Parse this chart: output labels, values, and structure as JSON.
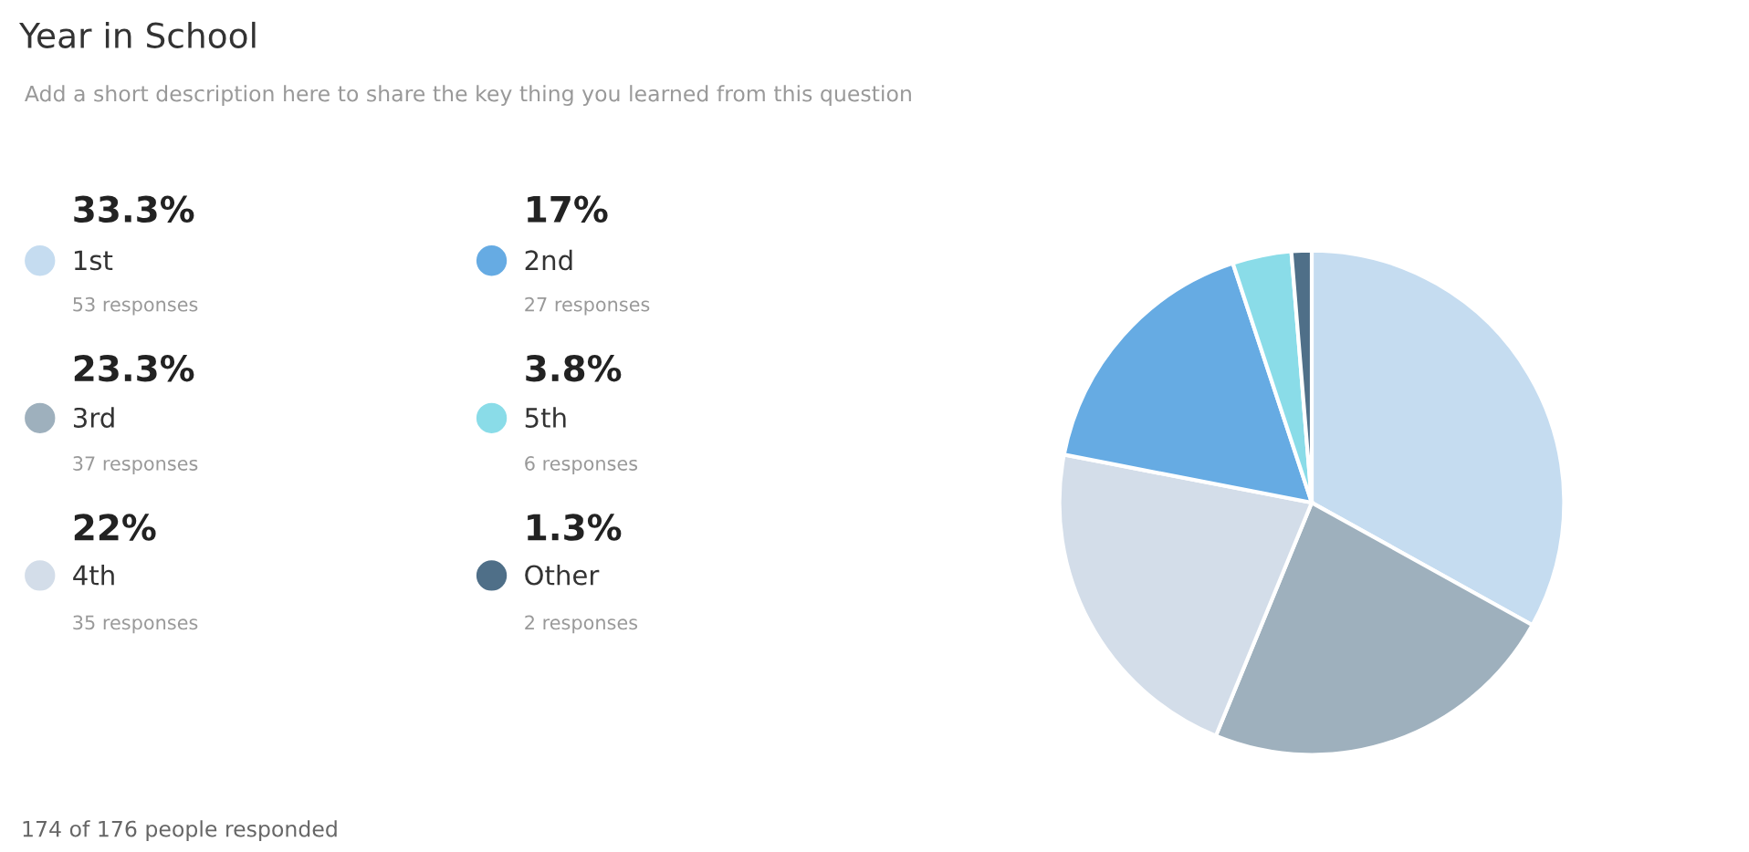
{
  "chart_data": {
    "type": "pie",
    "title": "Year in School",
    "subtitle": "Add a short description here to share the key thing you learned from this question",
    "categories": [
      "1st",
      "3rd",
      "4th",
      "2nd",
      "5th",
      "Other"
    ],
    "values": [
      33.3,
      23.3,
      22,
      17,
      3.8,
      1.3
    ],
    "value_labels": [
      "33.3%",
      "23.3%",
      "22%",
      "17%",
      "3.8%",
      "1.3%"
    ],
    "colors": [
      "#c5dcf0",
      "#9eb0bd",
      "#d3dde9",
      "#66abe3",
      "#8adce8",
      "#4f6f88"
    ],
    "annotations": [
      "53 responses",
      "37 responses",
      "35 responses",
      "27 responses",
      "6 responses",
      "2 responses",
      "174 of 176 people responded"
    ],
    "legend": "left"
  }
}
